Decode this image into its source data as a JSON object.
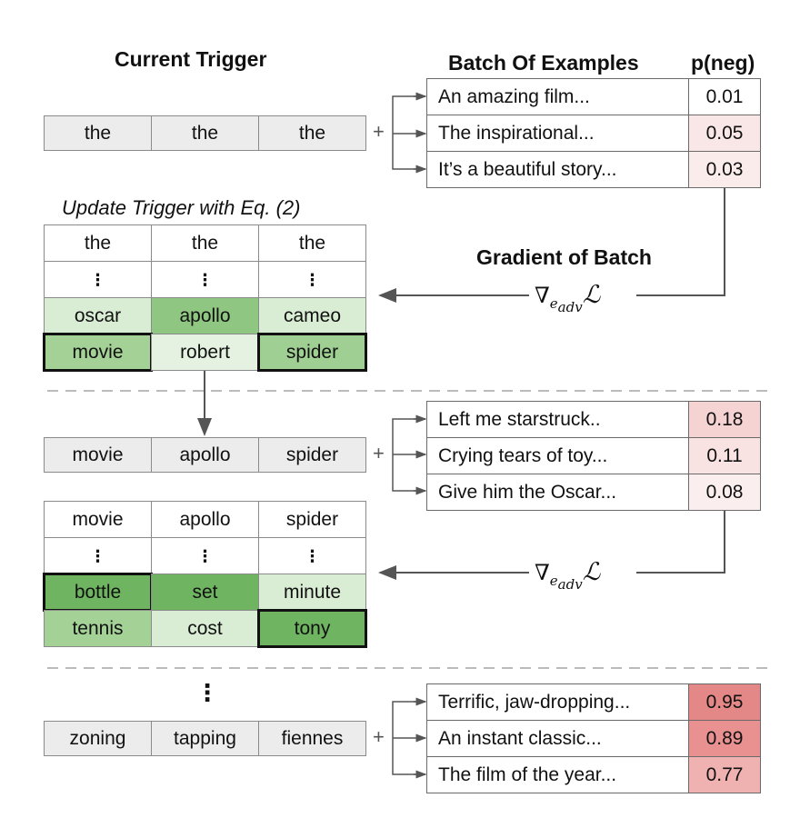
{
  "headers": {
    "current_trigger": "Current Trigger",
    "batch_of_examples": "Batch Of Examples",
    "p_neg": "p(neg)",
    "update_trigger": "Update Trigger with Eq. (2)",
    "gradient_of_batch": "Gradient of Batch",
    "gradient_symbol": "∇",
    "gradient_sub": "e",
    "gradient_subsub": "adv",
    "loss_symbol": "ℒ"
  },
  "plus_sign": "+",
  "ellipsis_vertical": "⋮",
  "rounds": [
    {
      "trigger": [
        "the",
        "the",
        "the"
      ],
      "examples": [
        {
          "text": "An amazing film...",
          "p": "0.01"
        },
        {
          "text": "The inspirational...",
          "p": "0.05"
        },
        {
          "text": "It’s a beautiful story...",
          "p": "0.03"
        }
      ],
      "candidate_header": [
        "the",
        "the",
        "the"
      ],
      "candidates": [
        [
          "oscar",
          "apollo",
          "cameo"
        ],
        [
          "movie",
          "robert",
          "spider"
        ]
      ]
    },
    {
      "trigger": [
        "movie",
        "apollo",
        "spider"
      ],
      "examples": [
        {
          "text": "Left me starstruck..",
          "p": "0.18"
        },
        {
          "text": "Crying tears of toy...",
          "p": "0.11"
        },
        {
          "text": "Give him the Oscar...",
          "p": "0.08"
        }
      ],
      "candidate_header": [
        "movie",
        "apollo",
        "spider"
      ],
      "candidates": [
        [
          "bottle",
          "set",
          "minute"
        ],
        [
          "tennis",
          "cost",
          "tony"
        ]
      ]
    },
    {
      "trigger": [
        "zoning",
        "tapping",
        "fiennes"
      ],
      "examples": [
        {
          "text": "Terrific, jaw-dropping...",
          "p": "0.95"
        },
        {
          "text": "An instant classic...",
          "p": "0.89"
        },
        {
          "text": "The film of the year...",
          "p": "0.77"
        }
      ]
    }
  ],
  "colors": {
    "light_green": "#d9ecd4",
    "mid_green": "#aed5a2",
    "dark_green": "#6fb561",
    "pink_light": "#f9e6e6",
    "pink_mid": "#f5d3d3",
    "pink_dark": "#e99090",
    "pink_darker": "#e48787"
  }
}
